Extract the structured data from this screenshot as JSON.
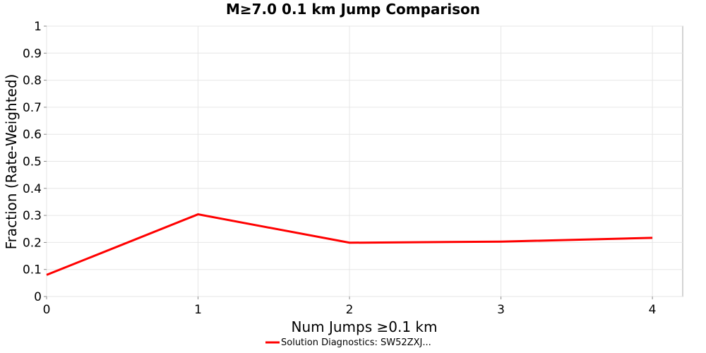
{
  "chart_data": {
    "type": "line",
    "title": "M≥7.0 0.1 km Jump Comparison",
    "xlabel": "Num Jumps ≥0.1 km",
    "ylabel": "Fraction (Rate-Weighted)",
    "xlim": [
      0,
      4.2
    ],
    "ylim": [
      0,
      1
    ],
    "xticks": [
      0,
      1,
      2,
      3,
      4
    ],
    "xtick_labels": [
      "0",
      "1",
      "2",
      "3",
      "4"
    ],
    "yticks": [
      0,
      0.1,
      0.2,
      0.3,
      0.4,
      0.5,
      0.6,
      0.7,
      0.8,
      0.9,
      1
    ],
    "ytick_labels": [
      "0",
      "0.1",
      "0.2",
      "0.3",
      "0.4",
      "0.5",
      "0.6",
      "0.7",
      "0.8",
      "0.9",
      "1"
    ],
    "grid": true,
    "legend_position": "bottom",
    "x": [
      0,
      1,
      2,
      3,
      4
    ],
    "series": [
      {
        "name": "Solution Diagnostics: SW52ZXJ...",
        "color": "#ff0000",
        "values": [
          0.08,
          0.304,
          0.199,
          0.203,
          0.217
        ]
      }
    ]
  }
}
